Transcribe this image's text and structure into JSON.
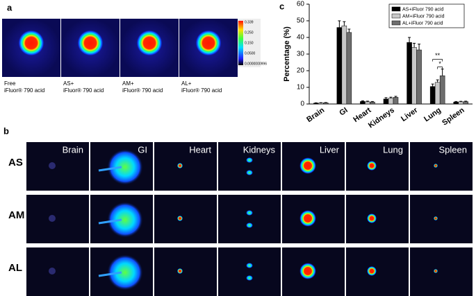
{
  "panel_labels": [
    "a",
    "b",
    "c"
  ],
  "panel_a": {
    "captions": [
      [
        "Free",
        "iFluor® 790 acid"
      ],
      [
        "AS+",
        "iFluor® 790 acid"
      ],
      [
        "AM+",
        "iFluor® 790 acid"
      ],
      [
        "AL+",
        "iFluor® 790 acid"
      ]
    ],
    "colorbar_labels": [
      "0.339",
      "0.250",
      "0.150",
      "0.0500",
      "0.0000000996"
    ]
  },
  "panel_b": {
    "rows": [
      "AS",
      "AM",
      "AL"
    ],
    "columns": [
      "Brain",
      "GI",
      "Heart",
      "Kidneys",
      "Liver",
      "Lung",
      "Spleen"
    ]
  },
  "chart_data": {
    "type": "bar",
    "ylabel": "Percentage (%)",
    "categories": [
      "Brain",
      "GI",
      "Heart",
      "Kidneys",
      "Liver",
      "Lung",
      "Spleen"
    ],
    "series": [
      {
        "name": "AS+iFluor 790 acid",
        "color": "#000000",
        "values": [
          0.5,
          46,
          1.5,
          3,
          37,
          10.5,
          1.2
        ],
        "errors": [
          0.2,
          4,
          0.4,
          0.8,
          3,
          1.5,
          0.3
        ]
      },
      {
        "name": "AM+iFluor 790 acid",
        "color": "#c8c8c8",
        "values": [
          0.6,
          47,
          1.3,
          3.5,
          34,
          13,
          1.3
        ],
        "errors": [
          0.2,
          2.5,
          0.4,
          0.6,
          2.5,
          1.5,
          0.3
        ]
      },
      {
        "name": "AL+iFluor 790 acid",
        "color": "#6e6e6e",
        "values": [
          0.7,
          43,
          1.2,
          4,
          32.5,
          17,
          1.4
        ],
        "errors": [
          0.2,
          2,
          0.3,
          0.6,
          3.5,
          4,
          0.3
        ]
      }
    ],
    "annotations": [
      "**",
      "*"
    ],
    "ylim": [
      0,
      60
    ],
    "yticks": [
      0,
      10,
      20,
      30,
      40,
      50,
      60
    ],
    "grid": false,
    "legend": "upper right"
  }
}
